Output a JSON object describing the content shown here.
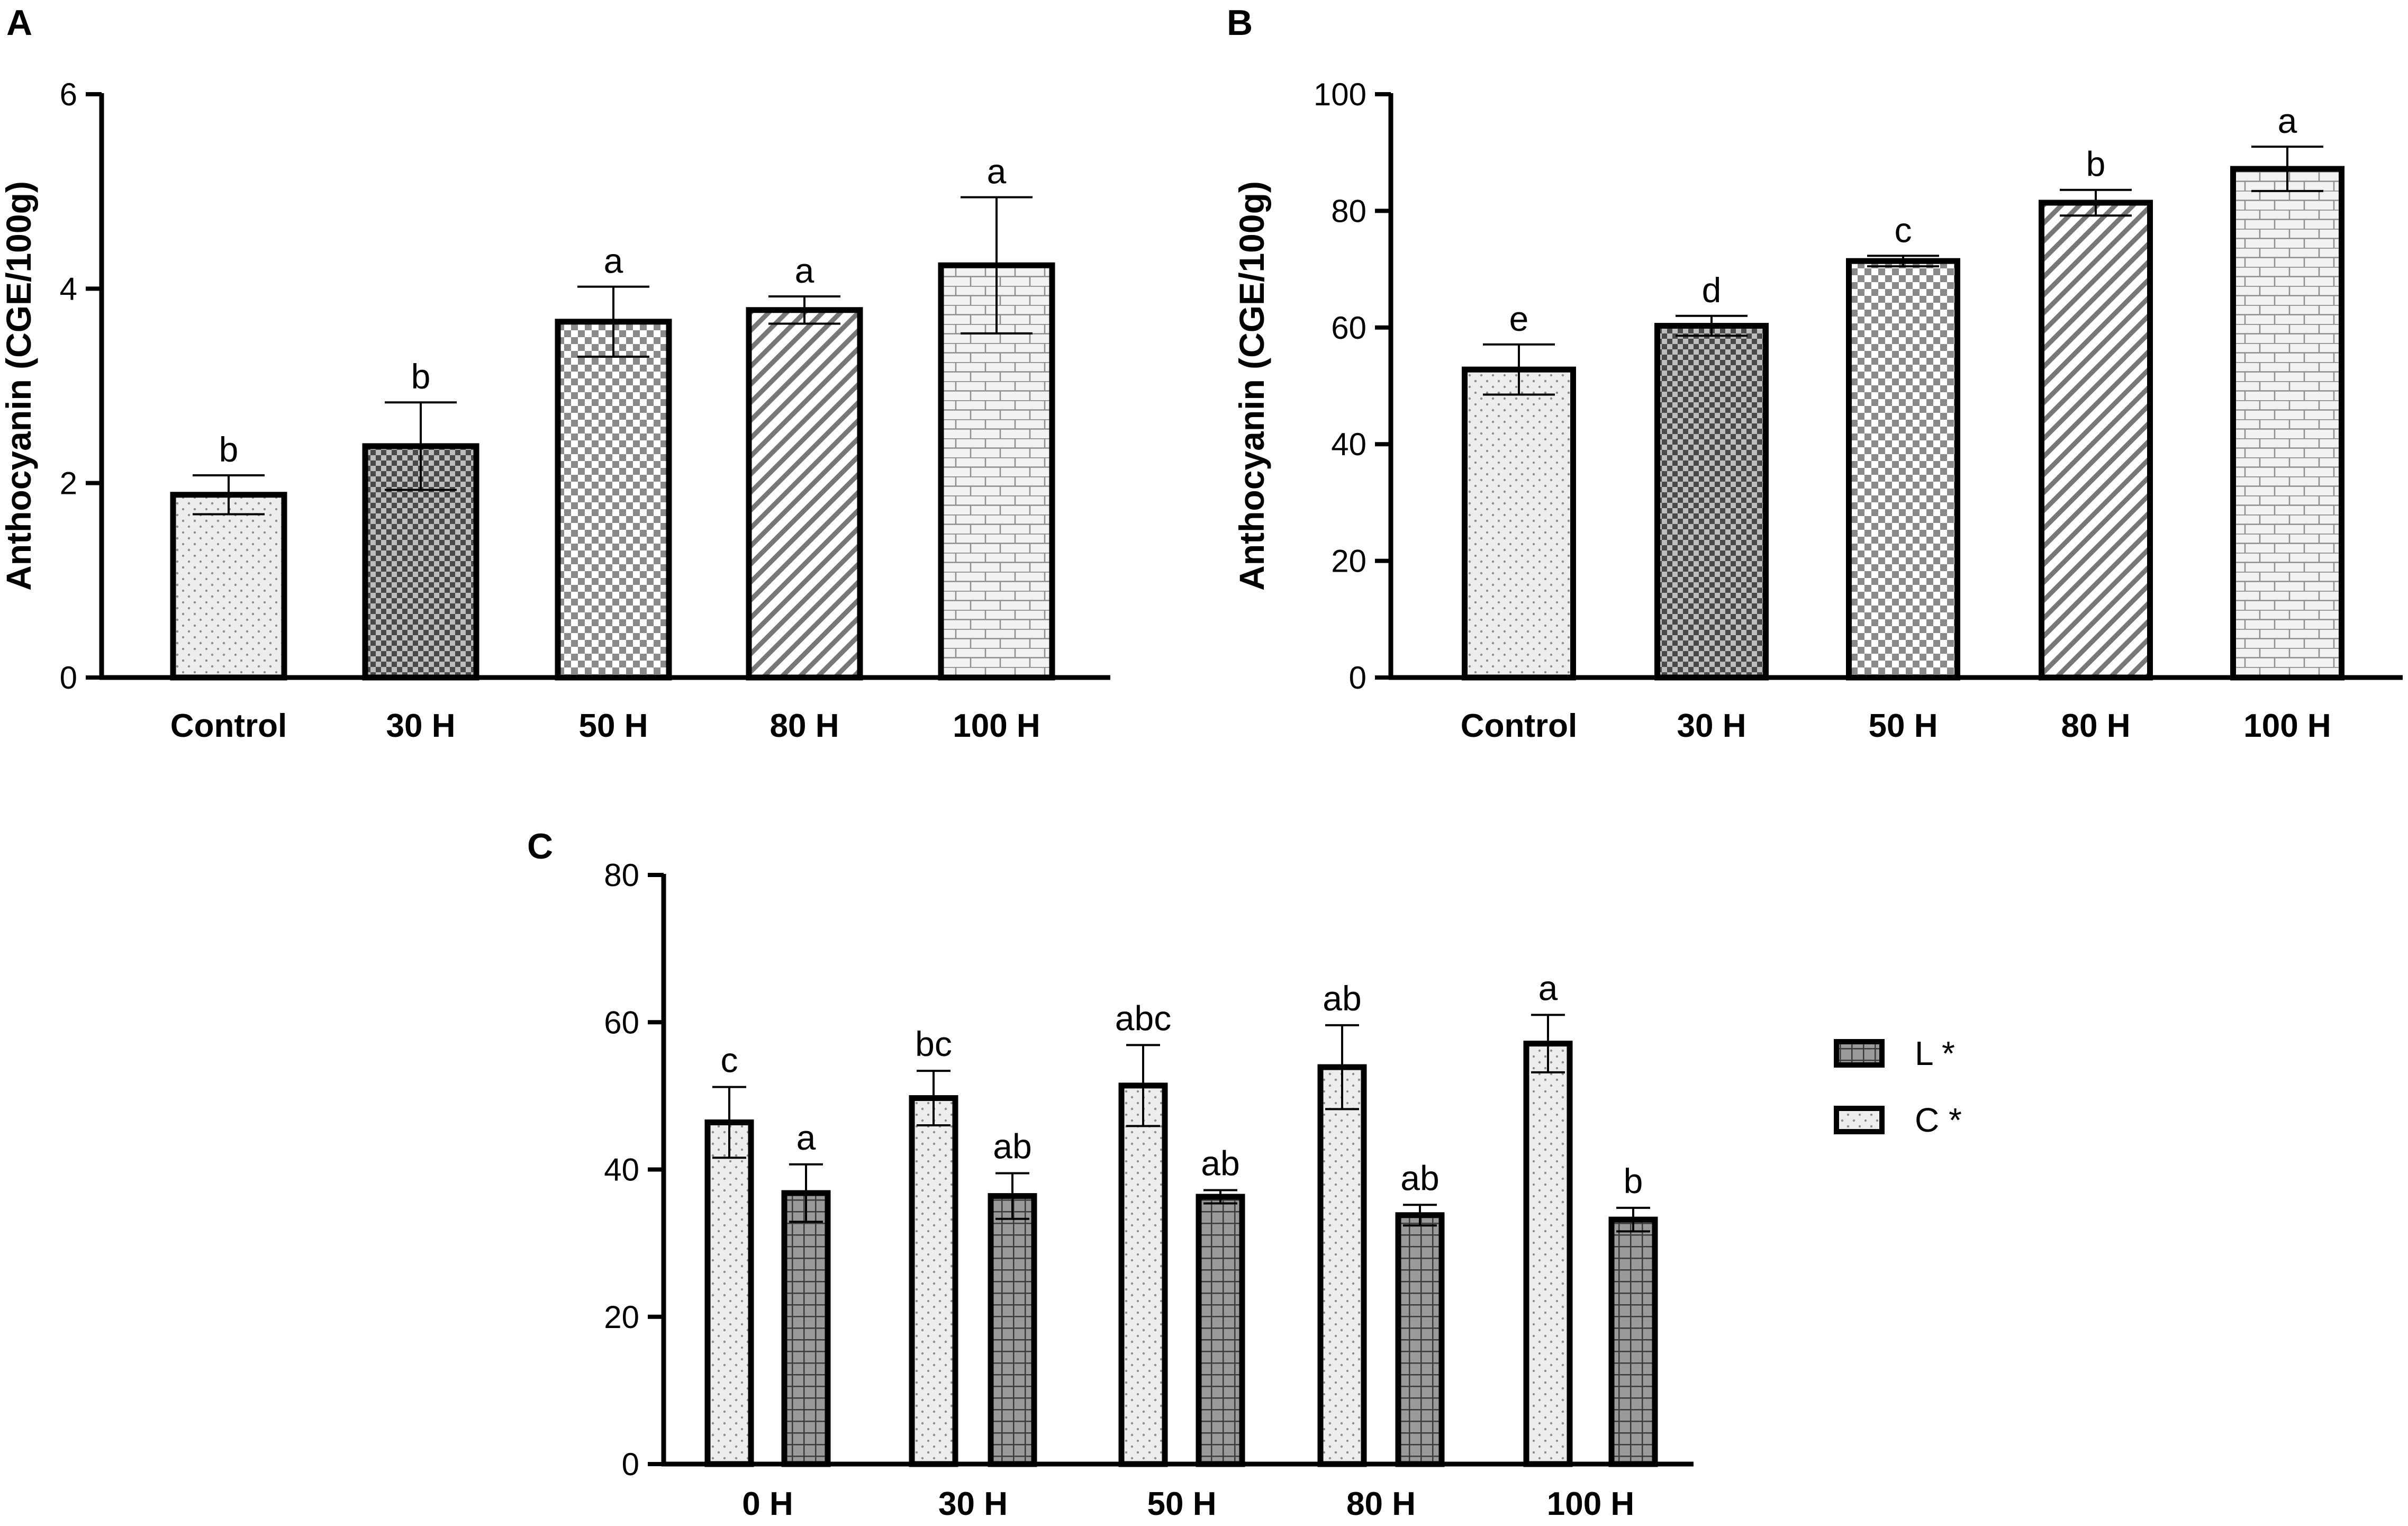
{
  "chart_data": [
    {
      "panel": "A",
      "type": "bar",
      "ylabel": "Anthocyanin (CGE/100g)",
      "ylim": [
        0,
        6
      ],
      "yticks": [
        0,
        2,
        4,
        6
      ],
      "categories": [
        "Control",
        "30 H",
        "50 H",
        "80 H",
        "100 H"
      ],
      "values": [
        1.88,
        2.38,
        3.66,
        3.78,
        4.24
      ],
      "errors": [
        0.2,
        0.45,
        0.36,
        0.14,
        0.7
      ],
      "significance": [
        "b",
        "b",
        "a",
        "a",
        "a"
      ],
      "patterns": [
        "dots",
        "checker-dark",
        "checker-light",
        "diagonal",
        "brick"
      ]
    },
    {
      "panel": "B",
      "type": "bar",
      "ylabel": "Anthocyanin  (CGE/100g)",
      "ylim": [
        0,
        100
      ],
      "yticks": [
        0,
        20,
        40,
        60,
        80,
        100
      ],
      "categories": [
        "Control",
        "30 H",
        "50 H",
        "80 H",
        "100 H"
      ],
      "values": [
        52.8,
        60.3,
        71.4,
        81.4,
        87.2
      ],
      "errors": [
        4.3,
        1.7,
        0.9,
        2.2,
        3.8
      ],
      "significance": [
        "e",
        "d",
        "c",
        "b",
        "a"
      ],
      "patterns": [
        "dots",
        "checker-dark",
        "checker-light",
        "diagonal",
        "brick"
      ]
    },
    {
      "panel": "C",
      "type": "bar",
      "ylim": [
        0,
        80
      ],
      "yticks": [
        0,
        20,
        40,
        60,
        80
      ],
      "categories": [
        "0 H",
        "30 H",
        "50 H",
        "80 H",
        "100 H"
      ],
      "legend_position": "right",
      "series": [
        {
          "name": "L *",
          "pattern": "grid",
          "values": [
            36.8,
            36.4,
            36.3,
            33.8,
            33.2
          ],
          "errors": [
            3.9,
            3.1,
            0.9,
            1.4,
            1.6
          ],
          "significance": [
            "a",
            "ab",
            "ab",
            "ab",
            "b"
          ]
        },
        {
          "name": "C *",
          "pattern": "dots",
          "values": [
            46.4,
            49.7,
            51.4,
            53.9,
            57.1
          ],
          "errors": [
            4.8,
            3.7,
            5.5,
            5.7,
            3.9
          ],
          "significance": [
            "c",
            "bc",
            "abc",
            "ab",
            "a"
          ]
        }
      ]
    }
  ]
}
